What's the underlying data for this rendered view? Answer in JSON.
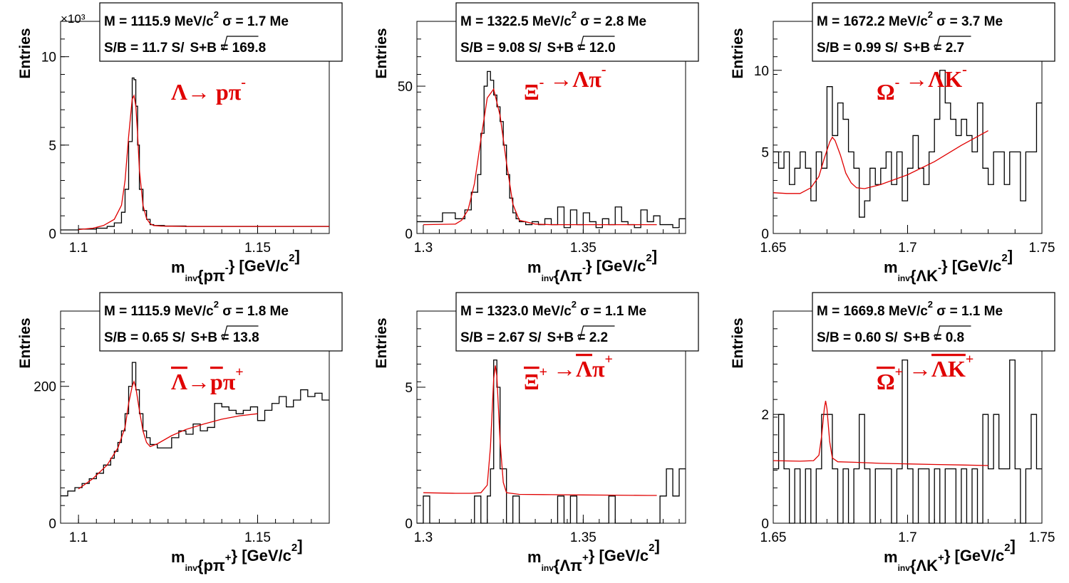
{
  "chart_data": [
    {
      "type": "histogram",
      "ylabel": "Entries",
      "exponent_label": "×10³",
      "xlabel_parts": [
        "m",
        "inv",
        "{pπ",
        "-",
        "} [GeV/c",
        "2",
        "]"
      ],
      "xticks": [
        "1.1",
        "1.15"
      ],
      "yticks": [
        "0",
        "5",
        "10"
      ],
      "xlim": [
        1.095,
        1.17
      ],
      "ylim": [
        0,
        12
      ],
      "reaction": {
        "parts": [
          [
            "Λ→ pπ",
            "n"
          ],
          [
            "-",
            "sup"
          ]
        ]
      },
      "stats_line1": [
        "M = 1115.9 MeV/c",
        "2",
        " σ = 1.7 Me"
      ],
      "stats_line2": [
        "S/B = 11.7   S/",
        "S+B = 169.8"
      ],
      "hist_x": [
        1.095,
        1.1,
        1.105,
        1.108,
        1.11,
        1.112,
        1.113,
        1.114,
        1.115,
        1.1155,
        1.116,
        1.1165,
        1.117,
        1.118,
        1.119,
        1.12,
        1.121,
        1.122,
        1.124,
        1.127,
        1.13,
        1.135,
        1.14,
        1.145,
        1.15,
        1.155,
        1.16,
        1.165
      ],
      "hist_y": [
        0.2,
        0.25,
        0.3,
        0.4,
        0.6,
        1.2,
        2.5,
        5.2,
        8.8,
        8.7,
        7.2,
        5.0,
        2.5,
        1.3,
        0.8,
        0.5,
        0.45,
        0.45,
        0.42,
        0.42,
        0.4,
        0.4,
        0.4,
        0.4,
        0.4,
        0.4,
        0.4,
        0.4
      ],
      "fit_x": [
        1.1,
        1.104,
        1.107,
        1.11,
        1.112,
        1.113,
        1.114,
        1.115,
        1.1155,
        1.116,
        1.1165,
        1.117,
        1.118,
        1.119,
        1.12,
        1.121,
        1.123,
        1.126,
        1.13,
        1.14,
        1.15,
        1.16,
        1.17
      ],
      "fit_y": [
        0.22,
        0.3,
        0.45,
        0.8,
        1.6,
        3.0,
        5.5,
        7.6,
        7.8,
        7.2,
        5.6,
        3.6,
        1.6,
        0.85,
        0.55,
        0.45,
        0.42,
        0.41,
        0.4,
        0.4,
        0.4,
        0.4,
        0.4
      ]
    },
    {
      "type": "histogram",
      "ylabel": "Entries",
      "xlabel_parts": [
        "m",
        "inv",
        "{Λπ",
        "-",
        "} [GeV/c",
        "2",
        "]"
      ],
      "xticks": [
        "1.3",
        "1.35"
      ],
      "yticks": [
        "0",
        "50"
      ],
      "xlim": [
        1.298,
        1.382
      ],
      "ylim": [
        0,
        72
      ],
      "reaction": {
        "parts": [
          [
            "Ξ",
            "n"
          ],
          [
            "-",
            "sup"
          ],
          [
            " →Λπ",
            "n"
          ],
          [
            "-",
            "sup"
          ]
        ]
      },
      "stats_line1": [
        "M = 1322.5 MeV/c",
        "2",
        " σ = 2.8 Me"
      ],
      "stats_line2": [
        "S/B = 9.08   S/",
        "S+B = 12.0"
      ],
      "hist_x": [
        1.298,
        1.302,
        1.306,
        1.31,
        1.313,
        1.315,
        1.317,
        1.318,
        1.319,
        1.32,
        1.321,
        1.322,
        1.323,
        1.324,
        1.325,
        1.326,
        1.327,
        1.328,
        1.329,
        1.33,
        1.332,
        1.334,
        1.336,
        1.338,
        1.34,
        1.342,
        1.344,
        1.346,
        1.348,
        1.35,
        1.352,
        1.354,
        1.356,
        1.358,
        1.36,
        1.362,
        1.364,
        1.366,
        1.368,
        1.37,
        1.372,
        1.374,
        1.376,
        1.378,
        1.38
      ],
      "hist_y": [
        4,
        4,
        7,
        5,
        8,
        14,
        20,
        34,
        50,
        55,
        52,
        47,
        43,
        38,
        30,
        20,
        12,
        7,
        5,
        4,
        3,
        4,
        3,
        5,
        3,
        9,
        2,
        8,
        3,
        7,
        4,
        2,
        5,
        3,
        9,
        4,
        3,
        2,
        8,
        4,
        6,
        3,
        3,
        2,
        5
      ],
      "fit_x": [
        1.3,
        1.31,
        1.312,
        1.314,
        1.316,
        1.318,
        1.32,
        1.322,
        1.324,
        1.326,
        1.328,
        1.33,
        1.335,
        1.34,
        1.35,
        1.36,
        1.37,
        1.373
      ],
      "fit_y": [
        3,
        3.2,
        4.5,
        8,
        17,
        32,
        46,
        49,
        40,
        24,
        10,
        4.5,
        3.2,
        3,
        3,
        3,
        3,
        3
      ]
    },
    {
      "type": "histogram",
      "ylabel": "Entries",
      "xlabel_parts": [
        "m",
        "inv",
        "{ΛK",
        "-",
        "} [GeV/c",
        "2",
        "]"
      ],
      "xticks": [
        "1.65",
        "1.7",
        "1.75"
      ],
      "yticks": [
        "0",
        "5",
        "10"
      ],
      "xlim": [
        1.65,
        1.75
      ],
      "ylim": [
        0,
        13
      ],
      "reaction": {
        "parts": [
          [
            "Ω",
            "n"
          ],
          [
            "-",
            "sup"
          ],
          [
            " →ΛK",
            "n"
          ],
          [
            "-",
            "sup"
          ]
        ]
      },
      "stats_line1": [
        "M = 1672.2 MeV/c",
        "2",
        " σ = 3.7 Me"
      ],
      "stats_line2": [
        "S/B = 0.99   S/",
        "S+B = 2.7"
      ],
      "hist_x": [
        1.65,
        1.652,
        1.654,
        1.656,
        1.658,
        1.66,
        1.662,
        1.664,
        1.666,
        1.668,
        1.67,
        1.672,
        1.674,
        1.676,
        1.678,
        1.68,
        1.682,
        1.684,
        1.686,
        1.688,
        1.69,
        1.692,
        1.694,
        1.696,
        1.698,
        1.7,
        1.702,
        1.704,
        1.706,
        1.708,
        1.71,
        1.712,
        1.714,
        1.716,
        1.718,
        1.72,
        1.722,
        1.724,
        1.726,
        1.728,
        1.73,
        1.732,
        1.734,
        1.736,
        1.738,
        1.74,
        1.742,
        1.744,
        1.746,
        1.748
      ],
      "hist_y": [
        5,
        4,
        5,
        3,
        4,
        5,
        4,
        2,
        5,
        4,
        9,
        6,
        8,
        7,
        5,
        4,
        1,
        2,
        4,
        3,
        4,
        5,
        3,
        5,
        2,
        4,
        6,
        4,
        3,
        5,
        7,
        10,
        8,
        7,
        6,
        7,
        6,
        5,
        8,
        4,
        3,
        5,
        5,
        3,
        5,
        5,
        2,
        5,
        5,
        8
      ],
      "fit_x": [
        1.65,
        1.655,
        1.66,
        1.664,
        1.667,
        1.669,
        1.671,
        1.672,
        1.673,
        1.675,
        1.677,
        1.679,
        1.681,
        1.684,
        1.69,
        1.7,
        1.71,
        1.72,
        1.73
      ],
      "fit_y": [
        2.5,
        2.45,
        2.45,
        2.8,
        3.5,
        4.6,
        5.6,
        5.9,
        5.7,
        4.8,
        3.7,
        3.1,
        2.8,
        2.75,
        3.0,
        3.6,
        4.4,
        5.4,
        6.3
      ]
    },
    {
      "type": "histogram",
      "ylabel": "Entries",
      "xlabel_parts": [
        "m",
        "inv",
        "{p",
        "π",
        "+",
        "} [GeV/c",
        "2",
        "]"
      ],
      "xticks": [
        "1.1",
        "1.15"
      ],
      "yticks": [
        "0",
        "200"
      ],
      "xlim": [
        1.095,
        1.17
      ],
      "ylim": [
        0,
        310
      ],
      "reaction": {
        "parts": [
          [
            "Λ",
            "bar"
          ],
          [
            "→",
            "n"
          ],
          [
            "p",
            "bar"
          ],
          [
            "π",
            "n"
          ],
          [
            "+",
            "sup"
          ]
        ]
      },
      "stats_line1": [
        "M = 1115.9 MeV/c",
        "2",
        " σ = 1.8 Me"
      ],
      "stats_line2": [
        "S/B = 0.65   S/",
        "S+B = 13.8"
      ],
      "hist_x": [
        1.095,
        1.097,
        1.099,
        1.101,
        1.103,
        1.105,
        1.107,
        1.109,
        1.11,
        1.111,
        1.112,
        1.113,
        1.114,
        1.115,
        1.116,
        1.117,
        1.118,
        1.119,
        1.12,
        1.122,
        1.124,
        1.126,
        1.128,
        1.13,
        1.132,
        1.134,
        1.136,
        1.138,
        1.14,
        1.142,
        1.144,
        1.146,
        1.148,
        1.15,
        1.152,
        1.154,
        1.156,
        1.158,
        1.16,
        1.162,
        1.164,
        1.166,
        1.168
      ],
      "hist_y": [
        40,
        47,
        52,
        58,
        65,
        73,
        85,
        95,
        105,
        118,
        135,
        160,
        200,
        235,
        195,
        160,
        135,
        125,
        115,
        110,
        110,
        125,
        135,
        130,
        145,
        135,
        140,
        175,
        170,
        165,
        160,
        165,
        170,
        150,
        165,
        175,
        185,
        170,
        180,
        195,
        185,
        190,
        180
      ],
      "fit_x": [
        1.1,
        1.104,
        1.108,
        1.111,
        1.113,
        1.114,
        1.115,
        1.1155,
        1.116,
        1.117,
        1.118,
        1.119,
        1.12,
        1.122,
        1.126,
        1.13,
        1.135,
        1.14,
        1.145,
        1.15
      ],
      "fit_y": [
        50,
        65,
        85,
        110,
        140,
        175,
        200,
        207,
        198,
        165,
        135,
        118,
        112,
        116,
        128,
        137,
        145,
        152,
        157,
        160
      ]
    },
    {
      "type": "histogram",
      "ylabel": "Entries",
      "xlabel_parts": [
        "m",
        "inv",
        "{Λ",
        "π",
        "+",
        "} [GeV/c",
        "2",
        "]"
      ],
      "xticks": [
        "1.3",
        "1.35"
      ],
      "yticks": [
        "0",
        "5"
      ],
      "xlim": [
        1.298,
        1.382
      ],
      "ylim": [
        0,
        7.8
      ],
      "reaction": {
        "parts": [
          [
            "Ξ",
            "bar"
          ],
          [
            "+",
            "sup"
          ],
          [
            " →",
            "n"
          ],
          [
            "Λ",
            "bar"
          ],
          [
            "π",
            "n"
          ],
          [
            "+",
            "sup"
          ]
        ]
      },
      "stats_line1": [
        "M = 1323.0 MeV/c",
        "2",
        " σ = 1.1 Me"
      ],
      "stats_line2": [
        "S/B = 2.67   S/",
        "S+B = 2.2"
      ],
      "hist_x": [
        1.298,
        1.3,
        1.302,
        1.304,
        1.306,
        1.308,
        1.31,
        1.312,
        1.314,
        1.316,
        1.318,
        1.32,
        1.321,
        1.322,
        1.323,
        1.324,
        1.325,
        1.326,
        1.328,
        1.33,
        1.332,
        1.334,
        1.336,
        1.338,
        1.34,
        1.342,
        1.344,
        1.346,
        1.348,
        1.35,
        1.352,
        1.354,
        1.356,
        1.358,
        1.36,
        1.362,
        1.364,
        1.366,
        1.368,
        1.37,
        1.372,
        1.374,
        1.376,
        1.378,
        1.38
      ],
      "hist_y": [
        0,
        1,
        0,
        0,
        0,
        0,
        0,
        0,
        0,
        1,
        0,
        1,
        2,
        6,
        5,
        2,
        2,
        0,
        1,
        0,
        0,
        0,
        0,
        0,
        0,
        1,
        0,
        1,
        0,
        0,
        0,
        0,
        0,
        1,
        0,
        0,
        0,
        0,
        0,
        0,
        0,
        1,
        2,
        1,
        2
      ],
      "fit_x": [
        1.3,
        1.31,
        1.315,
        1.318,
        1.32,
        1.321,
        1.322,
        1.3225,
        1.323,
        1.324,
        1.325,
        1.326,
        1.33,
        1.34,
        1.35,
        1.36,
        1.37,
        1.373
      ],
      "fit_y": [
        1.12,
        1.1,
        1.1,
        1.12,
        1.4,
        2.8,
        5.3,
        5.8,
        5.4,
        3.0,
        1.5,
        1.12,
        1.06,
        1.05,
        1.04,
        1.03,
        1.02,
        1.02
      ]
    },
    {
      "type": "histogram",
      "ylabel": "Entries",
      "xlabel_parts": [
        "m",
        "inv",
        "{Λ",
        "K",
        "+",
        "} [GeV/c",
        "2",
        "]"
      ],
      "xticks": [
        "1.65",
        "1.7",
        "1.75"
      ],
      "yticks": [
        "0",
        "2"
      ],
      "xlim": [
        1.65,
        1.75
      ],
      "ylim": [
        0,
        3.9
      ],
      "reaction": {
        "parts": [
          [
            "Ω",
            "bar"
          ],
          [
            "+",
            "sup"
          ],
          [
            " →",
            "n"
          ],
          [
            "ΛK",
            "bar"
          ],
          [
            "+",
            "sup"
          ]
        ]
      },
      "stats_line1": [
        "M = 1669.8 MeV/c",
        "2",
        " σ = 1.1 Me"
      ],
      "stats_line2": [
        "S/B = 0.60   S/",
        "S+B = 0.8"
      ],
      "hist_x": [
        1.65,
        1.652,
        1.654,
        1.656,
        1.658,
        1.66,
        1.662,
        1.664,
        1.666,
        1.668,
        1.67,
        1.672,
        1.674,
        1.676,
        1.678,
        1.68,
        1.682,
        1.684,
        1.686,
        1.688,
        1.69,
        1.692,
        1.694,
        1.696,
        1.698,
        1.7,
        1.702,
        1.704,
        1.706,
        1.708,
        1.71,
        1.712,
        1.714,
        1.716,
        1.718,
        1.72,
        1.722,
        1.724,
        1.726,
        1.728,
        1.73,
        1.732,
        1.734,
        1.736,
        1.738,
        1.74,
        1.742,
        1.744,
        1.746,
        1.748
      ],
      "hist_y": [
        1,
        2,
        1,
        0,
        1,
        0,
        1,
        0,
        1,
        2,
        2,
        1,
        0,
        1,
        0,
        1,
        2,
        1,
        0,
        1,
        1,
        1,
        0,
        1,
        3,
        1,
        0,
        1,
        1,
        0,
        1,
        0,
        1,
        1,
        0,
        1,
        0,
        1,
        0,
        2,
        1,
        2,
        1,
        1,
        3,
        1,
        0,
        1,
        2,
        1
      ],
      "fit_x": [
        1.65,
        1.66,
        1.665,
        1.667,
        1.668,
        1.669,
        1.6695,
        1.67,
        1.671,
        1.672,
        1.674,
        1.68,
        1.69,
        1.7,
        1.71,
        1.72,
        1.73
      ],
      "fit_y": [
        1.15,
        1.14,
        1.15,
        1.25,
        1.6,
        2.1,
        2.25,
        2.1,
        1.5,
        1.2,
        1.13,
        1.12,
        1.1,
        1.09,
        1.08,
        1.07,
        1.06
      ]
    }
  ]
}
